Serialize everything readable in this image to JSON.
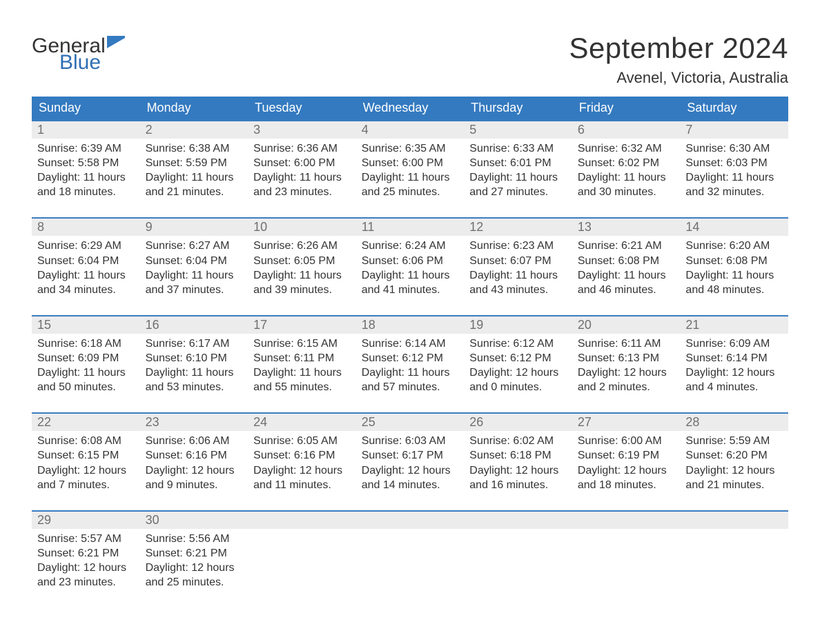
{
  "brand": {
    "line1": "General",
    "line2": "Blue",
    "text_color": "#333333",
    "accent_color": "#2f6fb3",
    "flag_color": "#347ac0"
  },
  "title": "September 2024",
  "subtitle": "Avenel, Victoria, Australia",
  "colors": {
    "header_bg": "#347ac0",
    "header_text": "#ffffff",
    "week_border": "#3a7dc0",
    "daynum_bg": "#ececec",
    "daynum_text": "#6f6f6f",
    "body_text": "#333333",
    "page_bg": "#ffffff"
  },
  "fonts": {
    "title_size_pt": 32,
    "subtitle_size_pt": 17,
    "header_size_pt": 14,
    "daynum_size_pt": 14,
    "body_size_pt": 12
  },
  "day_labels": [
    "Sunday",
    "Monday",
    "Tuesday",
    "Wednesday",
    "Thursday",
    "Friday",
    "Saturday"
  ],
  "weeks": [
    [
      {
        "n": "1",
        "sunrise": "Sunrise: 6:39 AM",
        "sunset": "Sunset: 5:58 PM",
        "day1": "Daylight: 11 hours",
        "day2": "and 18 minutes."
      },
      {
        "n": "2",
        "sunrise": "Sunrise: 6:38 AM",
        "sunset": "Sunset: 5:59 PM",
        "day1": "Daylight: 11 hours",
        "day2": "and 21 minutes."
      },
      {
        "n": "3",
        "sunrise": "Sunrise: 6:36 AM",
        "sunset": "Sunset: 6:00 PM",
        "day1": "Daylight: 11 hours",
        "day2": "and 23 minutes."
      },
      {
        "n": "4",
        "sunrise": "Sunrise: 6:35 AM",
        "sunset": "Sunset: 6:00 PM",
        "day1": "Daylight: 11 hours",
        "day2": "and 25 minutes."
      },
      {
        "n": "5",
        "sunrise": "Sunrise: 6:33 AM",
        "sunset": "Sunset: 6:01 PM",
        "day1": "Daylight: 11 hours",
        "day2": "and 27 minutes."
      },
      {
        "n": "6",
        "sunrise": "Sunrise: 6:32 AM",
        "sunset": "Sunset: 6:02 PM",
        "day1": "Daylight: 11 hours",
        "day2": "and 30 minutes."
      },
      {
        "n": "7",
        "sunrise": "Sunrise: 6:30 AM",
        "sunset": "Sunset: 6:03 PM",
        "day1": "Daylight: 11 hours",
        "day2": "and 32 minutes."
      }
    ],
    [
      {
        "n": "8",
        "sunrise": "Sunrise: 6:29 AM",
        "sunset": "Sunset: 6:04 PM",
        "day1": "Daylight: 11 hours",
        "day2": "and 34 minutes."
      },
      {
        "n": "9",
        "sunrise": "Sunrise: 6:27 AM",
        "sunset": "Sunset: 6:04 PM",
        "day1": "Daylight: 11 hours",
        "day2": "and 37 minutes."
      },
      {
        "n": "10",
        "sunrise": "Sunrise: 6:26 AM",
        "sunset": "Sunset: 6:05 PM",
        "day1": "Daylight: 11 hours",
        "day2": "and 39 minutes."
      },
      {
        "n": "11",
        "sunrise": "Sunrise: 6:24 AM",
        "sunset": "Sunset: 6:06 PM",
        "day1": "Daylight: 11 hours",
        "day2": "and 41 minutes."
      },
      {
        "n": "12",
        "sunrise": "Sunrise: 6:23 AM",
        "sunset": "Sunset: 6:07 PM",
        "day1": "Daylight: 11 hours",
        "day2": "and 43 minutes."
      },
      {
        "n": "13",
        "sunrise": "Sunrise: 6:21 AM",
        "sunset": "Sunset: 6:08 PM",
        "day1": "Daylight: 11 hours",
        "day2": "and 46 minutes."
      },
      {
        "n": "14",
        "sunrise": "Sunrise: 6:20 AM",
        "sunset": "Sunset: 6:08 PM",
        "day1": "Daylight: 11 hours",
        "day2": "and 48 minutes."
      }
    ],
    [
      {
        "n": "15",
        "sunrise": "Sunrise: 6:18 AM",
        "sunset": "Sunset: 6:09 PM",
        "day1": "Daylight: 11 hours",
        "day2": "and 50 minutes."
      },
      {
        "n": "16",
        "sunrise": "Sunrise: 6:17 AM",
        "sunset": "Sunset: 6:10 PM",
        "day1": "Daylight: 11 hours",
        "day2": "and 53 minutes."
      },
      {
        "n": "17",
        "sunrise": "Sunrise: 6:15 AM",
        "sunset": "Sunset: 6:11 PM",
        "day1": "Daylight: 11 hours",
        "day2": "and 55 minutes."
      },
      {
        "n": "18",
        "sunrise": "Sunrise: 6:14 AM",
        "sunset": "Sunset: 6:12 PM",
        "day1": "Daylight: 11 hours",
        "day2": "and 57 minutes."
      },
      {
        "n": "19",
        "sunrise": "Sunrise: 6:12 AM",
        "sunset": "Sunset: 6:12 PM",
        "day1": "Daylight: 12 hours",
        "day2": "and 0 minutes."
      },
      {
        "n": "20",
        "sunrise": "Sunrise: 6:11 AM",
        "sunset": "Sunset: 6:13 PM",
        "day1": "Daylight: 12 hours",
        "day2": "and 2 minutes."
      },
      {
        "n": "21",
        "sunrise": "Sunrise: 6:09 AM",
        "sunset": "Sunset: 6:14 PM",
        "day1": "Daylight: 12 hours",
        "day2": "and 4 minutes."
      }
    ],
    [
      {
        "n": "22",
        "sunrise": "Sunrise: 6:08 AM",
        "sunset": "Sunset: 6:15 PM",
        "day1": "Daylight: 12 hours",
        "day2": "and 7 minutes."
      },
      {
        "n": "23",
        "sunrise": "Sunrise: 6:06 AM",
        "sunset": "Sunset: 6:16 PM",
        "day1": "Daylight: 12 hours",
        "day2": "and 9 minutes."
      },
      {
        "n": "24",
        "sunrise": "Sunrise: 6:05 AM",
        "sunset": "Sunset: 6:16 PM",
        "day1": "Daylight: 12 hours",
        "day2": "and 11 minutes."
      },
      {
        "n": "25",
        "sunrise": "Sunrise: 6:03 AM",
        "sunset": "Sunset: 6:17 PM",
        "day1": "Daylight: 12 hours",
        "day2": "and 14 minutes."
      },
      {
        "n": "26",
        "sunrise": "Sunrise: 6:02 AM",
        "sunset": "Sunset: 6:18 PM",
        "day1": "Daylight: 12 hours",
        "day2": "and 16 minutes."
      },
      {
        "n": "27",
        "sunrise": "Sunrise: 6:00 AM",
        "sunset": "Sunset: 6:19 PM",
        "day1": "Daylight: 12 hours",
        "day2": "and 18 minutes."
      },
      {
        "n": "28",
        "sunrise": "Sunrise: 5:59 AM",
        "sunset": "Sunset: 6:20 PM",
        "day1": "Daylight: 12 hours",
        "day2": "and 21 minutes."
      }
    ],
    [
      {
        "n": "29",
        "sunrise": "Sunrise: 5:57 AM",
        "sunset": "Sunset: 6:21 PM",
        "day1": "Daylight: 12 hours",
        "day2": "and 23 minutes."
      },
      {
        "n": "30",
        "sunrise": "Sunrise: 5:56 AM",
        "sunset": "Sunset: 6:21 PM",
        "day1": "Daylight: 12 hours",
        "day2": "and 25 minutes."
      },
      null,
      null,
      null,
      null,
      null
    ]
  ]
}
